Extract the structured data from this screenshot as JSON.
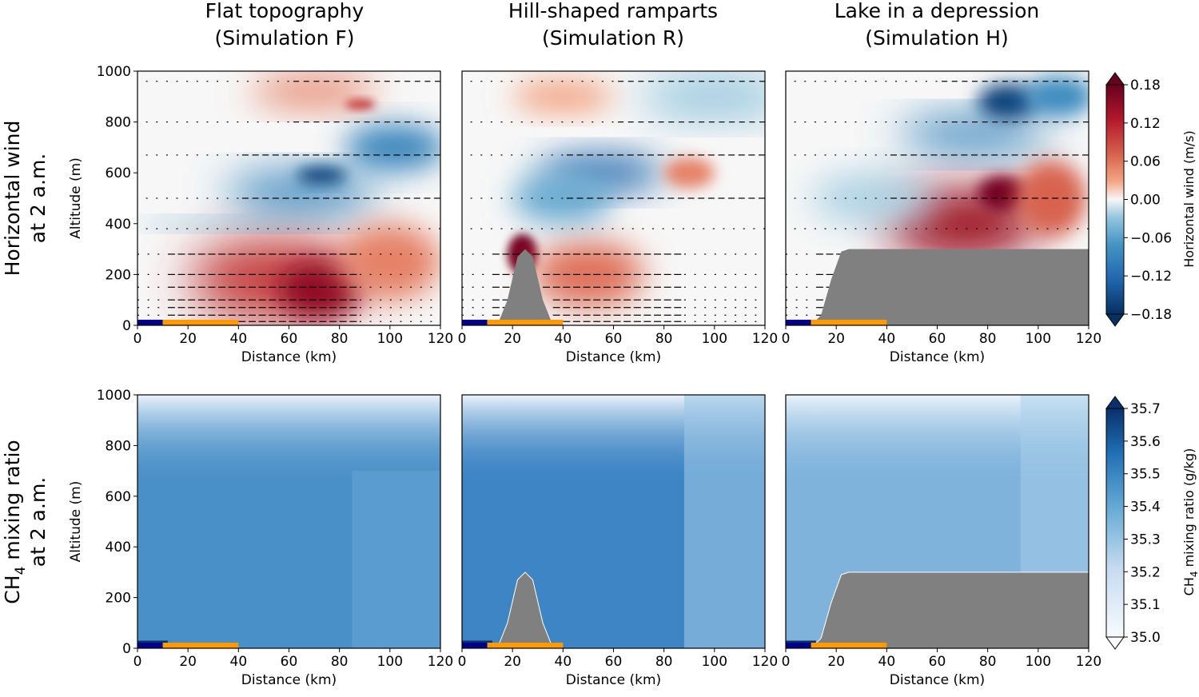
{
  "column_titles": [
    {
      "line1": "Flat topography",
      "line2": "(Simulation F)"
    },
    {
      "line1": "Hill-shaped ramparts",
      "line2": "(Simulation R)"
    },
    {
      "line1": "Lake in a depression",
      "line2": "(Simulation H)"
    }
  ],
  "row_labels": [
    {
      "line1": "Horizontal wind",
      "line2": "at 2 a.m."
    },
    {
      "line1": "CH4 mixing ratio",
      "line2": "at 2 a.m.",
      "prefix": "CH",
      "sub": "4",
      "suffix": " mixing ratio"
    }
  ],
  "axes": {
    "xlabel": "Distance (km)",
    "ylabel": "Altitude (m)",
    "x_ticks": [
      0,
      20,
      40,
      60,
      80,
      100,
      120
    ],
    "y_ticks": [
      0,
      200,
      400,
      600,
      800,
      1000
    ],
    "xlim": [
      0,
      120
    ],
    "ylim": [
      0,
      1000
    ]
  },
  "colorbars": [
    {
      "label": "Horizontal wind (m/s)",
      "ticks": [
        "0.18",
        "0.12",
        "0.06",
        "0.00",
        "−0.06",
        "−0.12",
        "−0.18"
      ],
      "range": [
        -0.18,
        0.18
      ],
      "colormap": "RdBu_r",
      "extend": "both"
    },
    {
      "label": "CH4 mixing ratio (g/kg)",
      "label_prefix": "CH",
      "label_sub": "4",
      "label_suffix": " mixing ratio (g/kg)",
      "ticks": [
        "35.7",
        "35.6",
        "35.5",
        "35.4",
        "35.3",
        "35.2",
        "35.1",
        "35.0"
      ],
      "range": [
        35.0,
        35.7
      ],
      "colormap": "Blues",
      "extend": "both"
    }
  ],
  "colors": {
    "lake_bar": "#00008b",
    "shore_bar": "#ff9900",
    "terrain": "#808080",
    "arrow": "#000000"
  },
  "chart_data": [
    {
      "type": "heatmap",
      "variable": "Horizontal wind",
      "simulation": "F",
      "x": "distance (km)",
      "y": "altitude (m)",
      "terrain": [
        [
          0,
          0
        ],
        [
          120,
          0
        ]
      ],
      "lake_km": [
        0,
        10
      ],
      "shore_km": [
        10,
        40
      ],
      "features": [
        {
          "kind": "positive",
          "x": [
            10,
            86
          ],
          "y": [
            0,
            320
          ],
          "max": 0.15
        },
        {
          "kind": "negative",
          "x": [
            40,
            120
          ],
          "y": [
            450,
            800
          ],
          "min": -0.15
        }
      ]
    },
    {
      "type": "heatmap",
      "variable": "Horizontal wind",
      "simulation": "R",
      "terrain": [
        [
          0,
          0
        ],
        [
          10,
          0
        ],
        [
          14,
          0
        ],
        [
          18,
          100
        ],
        [
          22,
          270
        ],
        [
          25,
          300
        ],
        [
          28,
          270
        ],
        [
          32,
          100
        ],
        [
          36,
          0
        ],
        [
          120,
          0
        ]
      ],
      "lake_km": [
        0,
        10
      ],
      "shore_km": [
        10,
        40
      ]
    },
    {
      "type": "heatmap",
      "variable": "Horizontal wind",
      "simulation": "H",
      "terrain": [
        [
          0,
          0
        ],
        [
          10,
          0
        ],
        [
          14,
          40
        ],
        [
          18,
          180
        ],
        [
          22,
          290
        ],
        [
          25,
          300
        ],
        [
          120,
          300
        ]
      ],
      "lake_km": [
        0,
        10
      ],
      "shore_km": [
        10,
        40
      ]
    },
    {
      "type": "heatmap",
      "variable": "CH4 mixing ratio",
      "simulation": "F",
      "terrain": [
        [
          0,
          0
        ],
        [
          120,
          0
        ]
      ],
      "lake_km": [
        0,
        10
      ],
      "shore_km": [
        10,
        40
      ],
      "range": [
        35.0,
        35.7
      ]
    },
    {
      "type": "heatmap",
      "variable": "CH4 mixing ratio",
      "simulation": "R",
      "terrain": [
        [
          0,
          0
        ],
        [
          10,
          0
        ],
        [
          14,
          0
        ],
        [
          18,
          100
        ],
        [
          22,
          270
        ],
        [
          25,
          300
        ],
        [
          28,
          270
        ],
        [
          32,
          100
        ],
        [
          36,
          0
        ],
        [
          120,
          0
        ]
      ],
      "lake_km": [
        0,
        10
      ],
      "shore_km": [
        10,
        40
      ],
      "range": [
        35.0,
        35.7
      ]
    },
    {
      "type": "heatmap",
      "variable": "CH4 mixing ratio",
      "simulation": "H",
      "terrain": [
        [
          0,
          0
        ],
        [
          10,
          0
        ],
        [
          14,
          40
        ],
        [
          18,
          180
        ],
        [
          22,
          290
        ],
        [
          25,
          300
        ],
        [
          120,
          300
        ]
      ],
      "lake_km": [
        0,
        10
      ],
      "shore_km": [
        10,
        40
      ],
      "range": [
        35.0,
        35.7
      ]
    }
  ]
}
